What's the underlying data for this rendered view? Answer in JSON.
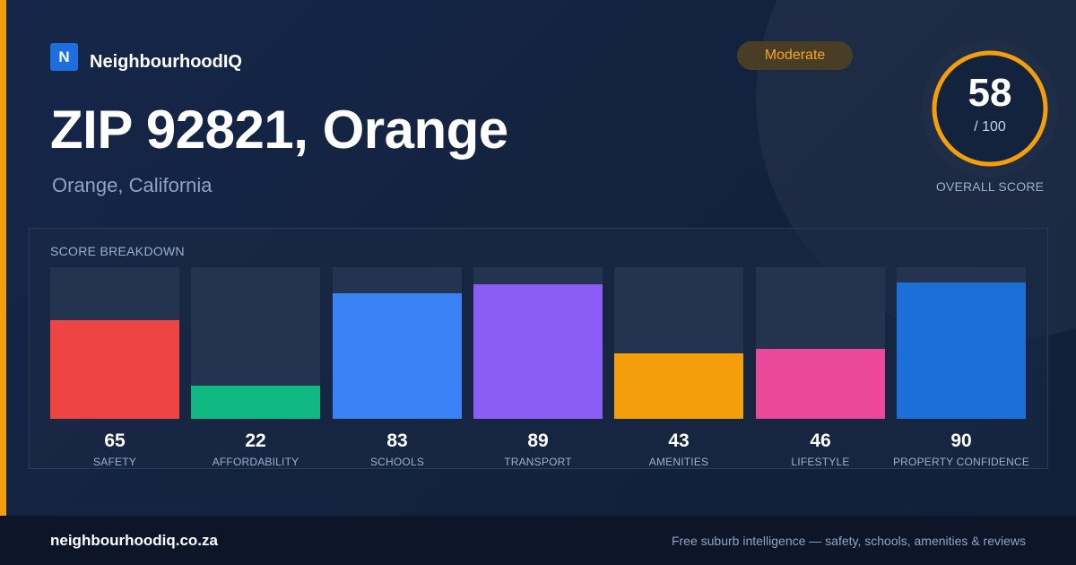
{
  "brand": {
    "logo_letter": "N",
    "name": "NeighbourhoodIQ"
  },
  "location": {
    "title": "ZIP 92821, Orange",
    "subtitle": "Orange, California"
  },
  "rating_badge": {
    "label": "Moderate",
    "color": "#f5a623"
  },
  "overall": {
    "score": "58",
    "max": "/ 100",
    "caption": "OVERALL SCORE",
    "score_fraction": 0.58,
    "ring_color": "#f59e0b"
  },
  "breakdown": {
    "title": "SCORE BREAKDOWN"
  },
  "chart_data": {
    "type": "bar",
    "title": "SCORE BREAKDOWN",
    "ylim": [
      0,
      100
    ],
    "categories": [
      "SAFETY",
      "AFFORDABILITY",
      "SCHOOLS",
      "TRANSPORT",
      "AMENITIES",
      "LIFESTYLE",
      "PROPERTY CONFIDENCE"
    ],
    "values": [
      65,
      22,
      83,
      89,
      43,
      46,
      90
    ],
    "colors": [
      "#ef4444",
      "#10b981",
      "#3b82f6",
      "#8b5cf6",
      "#f59e0b",
      "#ec4899",
      "#1d6fd8"
    ],
    "grid": false
  },
  "footer": {
    "site": "neighbourhoodiq.co.za",
    "tagline": "Free suburb intelligence — safety, schools, amenities & reviews"
  },
  "colors": {
    "accent": "#f59e0b",
    "background": "#13223d",
    "brand_blue": "#1d6fe0"
  }
}
